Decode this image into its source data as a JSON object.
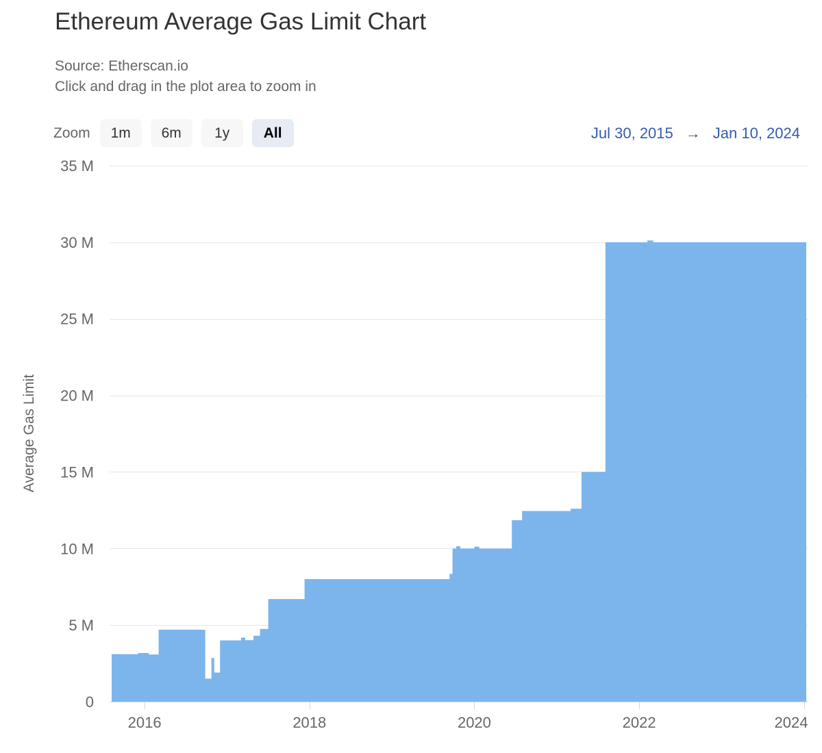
{
  "header": {
    "title": "Ethereum Average Gas Limit Chart",
    "source_line": "Source: Etherscan.io",
    "hint_line": "Click and drag in the plot area to zoom in"
  },
  "range_selector": {
    "zoom_label": "Zoom",
    "buttons": [
      {
        "label": "1m",
        "selected": false
      },
      {
        "label": "6m",
        "selected": false
      },
      {
        "label": "1y",
        "selected": false
      },
      {
        "label": "All",
        "selected": true
      }
    ],
    "from_date": "Jul 30, 2015",
    "arrow": "→",
    "to_date": "Jan 10, 2024"
  },
  "chart_data": {
    "type": "area",
    "title": "Ethereum Average Gas Limit Chart",
    "xlabel": "",
    "ylabel": "Average Gas Limit",
    "grid": true,
    "legend": "none",
    "ylim": [
      0,
      35
    ],
    "y_unit": "M",
    "y_ticks": [
      {
        "value": 0,
        "label": "0"
      },
      {
        "value": 5,
        "label": "5 M"
      },
      {
        "value": 10,
        "label": "10 M"
      },
      {
        "value": 15,
        "label": "15 M"
      },
      {
        "value": 20,
        "label": "20 M"
      },
      {
        "value": 25,
        "label": "25 M"
      },
      {
        "value": 30,
        "label": "30 M"
      },
      {
        "value": 35,
        "label": "35 M"
      }
    ],
    "x_range_years": [
      2015.575,
      2024.027
    ],
    "x_ticks": [
      {
        "value": 2016,
        "label": "2016"
      },
      {
        "value": 2018,
        "label": "2018"
      },
      {
        "value": 2020,
        "label": "2020"
      },
      {
        "value": 2022,
        "label": "2022"
      },
      {
        "value": 2024,
        "label": "2024"
      }
    ],
    "series": [
      {
        "name": "Average Gas Limit",
        "color": "#7cb5ec",
        "interpolation": "step-after",
        "points_year_valueM": [
          [
            2015.6,
            3.1
          ],
          [
            2015.92,
            3.18
          ],
          [
            2016.05,
            3.08
          ],
          [
            2016.17,
            4.7
          ],
          [
            2016.735,
            1.5
          ],
          [
            2016.81,
            2.85
          ],
          [
            2016.845,
            1.9
          ],
          [
            2016.915,
            4.0
          ],
          [
            2017.17,
            4.18
          ],
          [
            2017.22,
            4.02
          ],
          [
            2017.32,
            4.3
          ],
          [
            2017.4,
            4.75
          ],
          [
            2017.5,
            6.7
          ],
          [
            2017.94,
            8.0
          ],
          [
            2019.7,
            8.35
          ],
          [
            2019.735,
            10.0
          ],
          [
            2019.78,
            10.15
          ],
          [
            2019.83,
            10.0
          ],
          [
            2020.0,
            10.12
          ],
          [
            2020.06,
            10.0
          ],
          [
            2020.455,
            11.85
          ],
          [
            2020.58,
            12.45
          ],
          [
            2021.17,
            12.6
          ],
          [
            2021.3,
            15.0
          ],
          [
            2021.59,
            30.0
          ],
          [
            2022.1,
            30.12
          ],
          [
            2022.17,
            30.0
          ]
        ],
        "end_year": 2024.027
      }
    ]
  },
  "colors": {
    "area_fill": "#7cb5ec",
    "gridline": "#e6e6e6",
    "axis_line": "#ccd6eb",
    "tick": "#ccd6eb",
    "axis_label": "#666666",
    "title": "#333333",
    "subtitle": "#666666",
    "range_date": "#335cad",
    "button_bg": "#f7f7f7",
    "button_selected_bg": "#e6ebf4"
  }
}
